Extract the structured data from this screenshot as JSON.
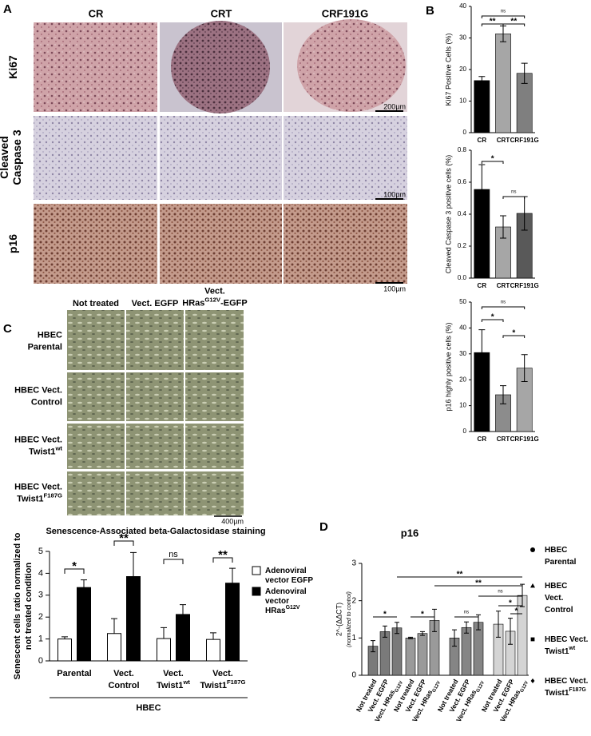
{
  "panels": {
    "A": {
      "label": "A",
      "columns": [
        "CR",
        "CRT",
        "CRF191G"
      ],
      "rows": [
        {
          "label": "Ki67",
          "scale": "200µm"
        },
        {
          "label": [
            "Cleaved",
            "Caspase 3"
          ],
          "scale": "100µm"
        },
        {
          "label": "p16",
          "scale": "100µm"
        }
      ]
    },
    "B": {
      "label": "B"
    },
    "C": {
      "label": "C",
      "columns": [
        "Not treated",
        "Vect. EGFP",
        [
          "Vect.",
          [
            {
              "t": "HRas"
            },
            {
              "t": "G12V",
              "s": "sup"
            },
            {
              "t": "-EGFP"
            }
          ]
        ]
      ],
      "rows": [
        [
          "HBEC",
          "Parental"
        ],
        [
          "HBEC Vect.",
          "Control"
        ],
        [
          "HBEC Vect.",
          [
            {
              "t": "Twist1"
            },
            {
              "t": "wt",
              "s": "sup"
            }
          ]
        ],
        [
          "HBEC Vect.",
          [
            {
              "t": "Twist1"
            },
            {
              "t": "F187G",
              "s": "sup"
            }
          ]
        ]
      ],
      "scale": "400µm"
    },
    "D": {
      "label": "D"
    }
  },
  "chart_data": [
    {
      "type": "bar",
      "ylabel": "Ki67 Positive Cells (%)",
      "categories": [
        "CR",
        "CRT",
        "CRF191G"
      ],
      "values": [
        16.5,
        31.3,
        18.8
      ],
      "errors": [
        1.3,
        2.5,
        3.2
      ],
      "colors": [
        "#000000",
        "#a6a6a6",
        "#7f7f7f"
      ],
      "ylim": [
        0,
        40
      ],
      "yticks": [
        0,
        10,
        20,
        30,
        40
      ],
      "annotations": [
        "ns",
        "**",
        "**"
      ]
    },
    {
      "type": "bar",
      "ylabel": "Cleaved Caspase 3 positive cells (%)",
      "categories": [
        "CR",
        "CRT",
        "CRF191G"
      ],
      "values": [
        0.555,
        0.32,
        0.405
      ],
      "errors": [
        0.155,
        0.07,
        0.105
      ],
      "colors": [
        "#000000",
        "#a6a6a6",
        "#595959"
      ],
      "ylim": [
        0,
        0.8
      ],
      "yticks": [
        {
          "value": 0,
          "label": "0.0"
        },
        0.2,
        0.4,
        0.6,
        0.8
      ],
      "annotations": [
        "*",
        "ns"
      ]
    },
    {
      "type": "bar",
      "ylabel": "p16 highly positive cells (%)",
      "categories": [
        "CR",
        "CRT",
        "CRF191G"
      ],
      "values": [
        30.5,
        14.2,
        24.5
      ],
      "errors": [
        8.8,
        3.5,
        5.2
      ],
      "colors": [
        "#000000",
        "#8c8c8c",
        "#a6a6a6"
      ],
      "ylim": [
        0,
        50
      ],
      "yticks": [
        0,
        10,
        20,
        30,
        40,
        50
      ],
      "annotations": [
        "ns",
        "*",
        "*"
      ]
    },
    {
      "type": "grouped-bar",
      "title": "Senescence-Associated beta-Galactosidase staining",
      "ylabel": [
        "Senescent cells ratio normalized to",
        "not treated condition"
      ],
      "xlabel": "HBEC",
      "categories": [
        "Parental",
        [
          "Vect.",
          "Control"
        ],
        [
          "Vect.",
          [
            {
              "t": "Twist1"
            },
            {
              "t": "wt",
              "s": "sup"
            }
          ]
        ],
        [
          "Vect.",
          [
            {
              "t": "Twist1"
            },
            {
              "t": "F187G",
              "s": "sup"
            }
          ]
        ]
      ],
      "series": [
        {
          "name": [
            "Adenoviral",
            "vector EGFP"
          ],
          "color": "#ffffff",
          "values": [
            1.0,
            1.25,
            1.02,
            0.98
          ],
          "errors": [
            0.1,
            0.68,
            0.5,
            0.3
          ]
        },
        {
          "name": [
            "Adenoviral",
            "vector",
            [
              {
                "t": "HRas"
              },
              {
                "t": "G12V",
                "s": "sup"
              }
            ]
          ],
          "color": "#000000",
          "values": [
            3.35,
            3.85,
            2.12,
            3.55
          ],
          "errors": [
            0.35,
            1.1,
            0.45,
            0.68
          ]
        }
      ],
      "ylim": [
        0,
        5
      ],
      "yticks": [
        0,
        1,
        2,
        3,
        4,
        5
      ],
      "annotations": [
        "*",
        "**",
        "ns",
        "**"
      ]
    },
    {
      "type": "group-bar",
      "title": "p16",
      "ylabel": "2^-(ΔΔCT)",
      "ysublabel": "(normalized to control)",
      "categories": [
        "Not treated",
        "Vect. EGFP",
        [
          [
            {
              "t": "Vect. HRas"
            },
            {
              "t": "G12V",
              "s": "sub"
            }
          ]
        ]
      ],
      "series": [
        {
          "name": [
            "HBEC",
            "Parental"
          ],
          "marker": "circle",
          "color": "#7a7a7a",
          "values": [
            0.78,
            1.17,
            1.27
          ],
          "errors": [
            0.15,
            0.15,
            0.15
          ]
        },
        {
          "name": [
            "HBEC",
            "Vect.",
            "Control"
          ],
          "marker": "triangle",
          "color": "#9a9a9a",
          "values": [
            1.0,
            1.12,
            1.47
          ],
          "errors": [
            0.02,
            0.05,
            0.3
          ]
        },
        {
          "name": [
            "HBEC Vect.",
            [
              {
                "t": "Twist1"
              },
              {
                "t": "wt",
                "s": "sup"
              }
            ]
          ],
          "marker": "square",
          "color": "#858585",
          "values": [
            1.0,
            1.28,
            1.42
          ],
          "errors": [
            0.22,
            0.15,
            0.2
          ]
        },
        {
          "name": [
            "HBEC Vect.",
            [
              {
                "t": "Twist1"
              },
              {
                "t": "F187G",
                "s": "sup"
              }
            ]
          ],
          "marker": "diamond",
          "color": "#d4d4d4",
          "values": [
            1.37,
            1.18,
            2.14
          ],
          "errors": [
            0.35,
            0.35,
            0.3
          ]
        }
      ],
      "ylim": [
        0,
        3
      ],
      "yticks": [
        0,
        1,
        2,
        3
      ],
      "annotations": [
        "**",
        "**",
        "ns",
        "*",
        "*",
        "*",
        "*",
        "ns"
      ]
    }
  ]
}
